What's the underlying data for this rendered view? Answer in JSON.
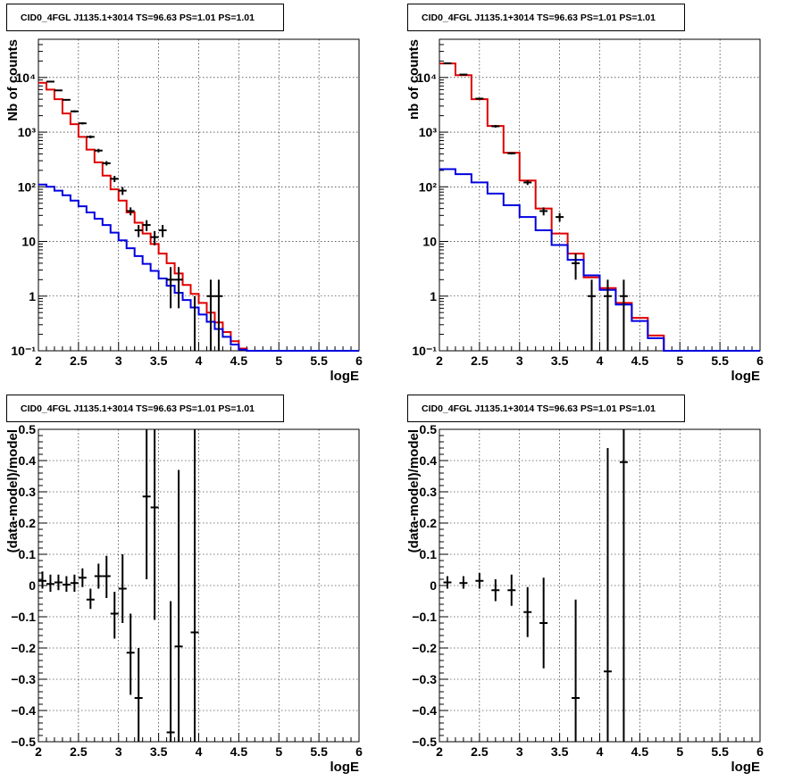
{
  "chart_data": [
    {
      "type": "line",
      "title": "CID0_4FGL J1135.1+3014 TS=96.63 PS=1.01 PS=1.01",
      "xlabel": "logE",
      "ylabel": "Nb of counts",
      "xlim": [
        2,
        6
      ],
      "ylim": [
        0.1,
        50000
      ],
      "yscale": "log",
      "grid": true,
      "x_ticks": [
        2,
        2.5,
        3,
        3.5,
        4,
        4.5,
        5,
        5.5,
        6
      ],
      "x_tick_labels": [
        "2",
        "2.5",
        "3",
        "3.5",
        "4",
        "4.5",
        "5",
        "5.5",
        "6"
      ],
      "y_ticks": [
        0.1,
        1,
        10,
        100,
        1000,
        10000
      ],
      "y_tick_labels": [
        "10⁻¹",
        "1",
        "10",
        "10²",
        "10³",
        "10⁴"
      ],
      "series": [
        {
          "color": "#e00000",
          "style": "step",
          "bin_edges": [
            2.0,
            2.1,
            2.2,
            2.3,
            2.4,
            2.5,
            2.6,
            2.7,
            2.8,
            2.9,
            3.0,
            3.1,
            3.2,
            3.3,
            3.4,
            3.5,
            3.6,
            3.7,
            3.8,
            3.9,
            4.0,
            4.1,
            4.2,
            4.3,
            4.4,
            4.5,
            4.6,
            4.7,
            4.8,
            4.9,
            5.0,
            5.1,
            5.2,
            5.3,
            5.4,
            5.5,
            5.6,
            5.7,
            5.8,
            5.9,
            6.0
          ],
          "values": [
            8000,
            6000,
            4000,
            2200,
            1400,
            820,
            480,
            280,
            160,
            90,
            56,
            34,
            22,
            14,
            9,
            6,
            4,
            2.6,
            1.6,
            1.1,
            0.75,
            0.5,
            0.33,
            0.22,
            0.15,
            0.11,
            0.1,
            0.1,
            0.1,
            0.1,
            0.1,
            0.1,
            0.1,
            0.1,
            0.1,
            0.1,
            0.1,
            0.1,
            0.1,
            0.1
          ]
        },
        {
          "color": "#0000e0",
          "style": "step",
          "bin_edges": [
            2.0,
            2.1,
            2.2,
            2.3,
            2.4,
            2.5,
            2.6,
            2.7,
            2.8,
            2.9,
            3.0,
            3.1,
            3.2,
            3.3,
            3.4,
            3.5,
            3.6,
            3.7,
            3.8,
            3.9,
            4.0,
            4.1,
            4.2,
            4.3,
            4.4,
            4.5,
            4.6,
            4.7,
            4.8,
            4.9,
            5.0,
            5.1,
            5.2,
            5.3,
            5.4,
            5.5,
            5.6,
            5.7,
            5.8,
            5.9,
            6.0
          ],
          "values": [
            110,
            100,
            85,
            70,
            56,
            44,
            34,
            26,
            20,
            14.5,
            10.5,
            7.5,
            5.4,
            3.9,
            2.9,
            2.1,
            1.55,
            1.15,
            0.85,
            0.62,
            0.46,
            0.34,
            0.25,
            0.18,
            0.13,
            0.105,
            0.1,
            0.1,
            0.1,
            0.1,
            0.1,
            0.1,
            0.1,
            0.1,
            0.1,
            0.1,
            0.1,
            0.1,
            0.1,
            0.1
          ]
        },
        {
          "color": "#000000",
          "style": "points",
          "points": [
            {
              "x": 2.15,
              "y": 8400,
              "ylo": 8250,
              "yhi": 8550
            },
            {
              "x": 2.25,
              "y": 5800,
              "ylo": 5650,
              "yhi": 5950
            },
            {
              "x": 2.35,
              "y": 3900,
              "ylo": 3780,
              "yhi": 4020
            },
            {
              "x": 2.45,
              "y": 2400,
              "ylo": 2300,
              "yhi": 2500
            },
            {
              "x": 2.55,
              "y": 1450,
              "ylo": 1380,
              "yhi": 1520
            },
            {
              "x": 2.65,
              "y": 820,
              "ylo": 770,
              "yhi": 870
            },
            {
              "x": 2.75,
              "y": 460,
              "ylo": 425,
              "yhi": 495
            },
            {
              "x": 2.85,
              "y": 270,
              "ylo": 245,
              "yhi": 295
            },
            {
              "x": 2.95,
              "y": 140,
              "ylo": 122,
              "yhi": 158
            },
            {
              "x": 3.05,
              "y": 85,
              "ylo": 71,
              "yhi": 99
            },
            {
              "x": 3.15,
              "y": 36,
              "ylo": 30,
              "yhi": 42
            },
            {
              "x": 3.25,
              "y": 16,
              "ylo": 12,
              "yhi": 20
            },
            {
              "x": 3.35,
              "y": 20,
              "ylo": 15.5,
              "yhi": 24.5
            },
            {
              "x": 3.45,
              "y": 12,
              "ylo": 8.5,
              "yhi": 15.5
            },
            {
              "x": 3.55,
              "y": 16,
              "ylo": 12,
              "yhi": 20
            },
            {
              "x": 3.65,
              "y": 2,
              "ylo": 0.6,
              "yhi": 3.4
            },
            {
              "x": 3.75,
              "y": 2,
              "ylo": 0.6,
              "yhi": 3.4
            },
            {
              "x": 3.95,
              "y": 0,
              "ylo": 0.1,
              "yhi": 1.0
            },
            {
              "x": 4.15,
              "y": 1,
              "ylo": 0.1,
              "yhi": 2.0
            },
            {
              "x": 4.25,
              "y": 1,
              "ylo": 0.1,
              "yhi": 2.0
            }
          ]
        }
      ]
    },
    {
      "type": "line",
      "title": "CID0_4FGL J1135.1+3014 TS=96.63 PS=1.01 PS=1.01",
      "xlabel": "logE",
      "ylabel": "nb of counts",
      "xlim": [
        2,
        6
      ],
      "ylim": [
        0.1,
        50000
      ],
      "yscale": "log",
      "grid": true,
      "x_ticks": [
        2,
        2.5,
        3,
        3.5,
        4,
        4.5,
        5,
        5.5,
        6
      ],
      "x_tick_labels": [
        "2",
        "2.5",
        "3",
        "3.5",
        "4",
        "4.5",
        "5",
        "5.5",
        "6"
      ],
      "y_ticks": [
        0.1,
        1,
        10,
        100,
        1000,
        10000
      ],
      "y_tick_labels": [
        "10⁻¹",
        "1",
        "10",
        "10²",
        "10³",
        "10⁴"
      ],
      "series": [
        {
          "color": "#e00000",
          "style": "step",
          "bin_edges": [
            2.0,
            2.2,
            2.4,
            2.6,
            2.8,
            3.0,
            3.2,
            3.4,
            3.6,
            3.8,
            4.0,
            4.2,
            4.4,
            4.6,
            4.8,
            5.0,
            5.2,
            5.4,
            5.6,
            5.8,
            6.0
          ],
          "values": [
            18000,
            11000,
            4000,
            1300,
            420,
            130,
            40,
            14,
            6,
            2.2,
            1.4,
            0.75,
            0.4,
            0.19,
            0.1,
            0.1,
            0.1,
            0.1,
            0.1,
            0.1
          ]
        },
        {
          "color": "#0000e0",
          "style": "step",
          "bin_edges": [
            2.0,
            2.2,
            2.4,
            2.6,
            2.8,
            3.0,
            3.2,
            3.4,
            3.6,
            3.8,
            4.0,
            4.2,
            4.4,
            4.6,
            4.8,
            5.0,
            5.2,
            5.4,
            5.6,
            5.8,
            6.0
          ],
          "values": [
            210,
            170,
            120,
            75,
            46,
            28,
            16,
            8.6,
            4.6,
            2.4,
            1.3,
            0.7,
            0.35,
            0.17,
            0.1,
            0.1,
            0.1,
            0.1,
            0.1,
            0.1
          ]
        },
        {
          "color": "#000000",
          "style": "points",
          "points": [
            {
              "x": 2.1,
              "y": 18200,
              "ylo": 18000,
              "yhi": 18400
            },
            {
              "x": 2.3,
              "y": 11300,
              "ylo": 11100,
              "yhi": 11500
            },
            {
              "x": 2.5,
              "y": 4100,
              "ylo": 3980,
              "yhi": 4220
            },
            {
              "x": 2.7,
              "y": 1280,
              "ylo": 1210,
              "yhi": 1350
            },
            {
              "x": 2.9,
              "y": 410,
              "ylo": 390,
              "yhi": 430
            },
            {
              "x": 3.1,
              "y": 120,
              "ylo": 108,
              "yhi": 132
            },
            {
              "x": 3.3,
              "y": 36,
              "ylo": 30,
              "yhi": 42
            },
            {
              "x": 3.5,
              "y": 28,
              "ylo": 23,
              "yhi": 33
            },
            {
              "x": 3.7,
              "y": 4,
              "ylo": 2,
              "yhi": 6
            },
            {
              "x": 3.9,
              "y": 1,
              "ylo": 0.1,
              "yhi": 2.0
            },
            {
              "x": 4.1,
              "y": 1,
              "ylo": 0.1,
              "yhi": 2.0
            },
            {
              "x": 4.3,
              "y": 1,
              "ylo": 0.1,
              "yhi": 2.0
            }
          ]
        }
      ]
    },
    {
      "type": "scatter",
      "title": "CID0_4FGL J1135.1+3014 TS=96.63 PS=1.01 PS=1.01",
      "xlabel": "logE",
      "ylabel": "(data-model)/model",
      "xlim": [
        2,
        6
      ],
      "ylim": [
        -0.5,
        0.5
      ],
      "grid": true,
      "x_ticks": [
        2,
        2.5,
        3,
        3.5,
        4,
        4.5,
        5,
        5.5,
        6
      ],
      "x_tick_labels": [
        "2",
        "2.5",
        "3",
        "3.5",
        "4",
        "4.5",
        "5",
        "5.5",
        "6"
      ],
      "y_ticks": [
        -0.5,
        -0.4,
        -0.3,
        -0.2,
        -0.1,
        0,
        0.1,
        0.2,
        0.3,
        0.4,
        0.5
      ],
      "y_tick_labels": [
        "−0.5",
        "−0.4",
        "−0.3",
        "−0.2",
        "−0.1",
        "0",
        "0.1",
        "0.2",
        "0.3",
        "0.4",
        "0.5"
      ],
      "series": [
        {
          "color": "#000000",
          "style": "points",
          "points": [
            {
              "x": 2.05,
              "y": 0.015,
              "ylo": -0.01,
              "yhi": 0.045
            },
            {
              "x": 2.15,
              "y": 0.005,
              "ylo": -0.02,
              "yhi": 0.035
            },
            {
              "x": 2.25,
              "y": 0.01,
              "ylo": -0.015,
              "yhi": 0.035
            },
            {
              "x": 2.35,
              "y": 0.003,
              "ylo": -0.02,
              "yhi": 0.03
            },
            {
              "x": 2.45,
              "y": 0.008,
              "ylo": -0.02,
              "yhi": 0.035
            },
            {
              "x": 2.55,
              "y": 0.025,
              "ylo": -0.005,
              "yhi": 0.055
            },
            {
              "x": 2.65,
              "y": -0.045,
              "ylo": -0.075,
              "yhi": -0.01
            },
            {
              "x": 2.75,
              "y": 0.03,
              "ylo": -0.01,
              "yhi": 0.07
            },
            {
              "x": 2.85,
              "y": 0.03,
              "ylo": -0.04,
              "yhi": 0.095
            },
            {
              "x": 2.95,
              "y": -0.09,
              "ylo": -0.17,
              "yhi": -0.02
            },
            {
              "x": 3.05,
              "y": -0.01,
              "ylo": -0.12,
              "yhi": 0.1
            },
            {
              "x": 3.15,
              "y": -0.215,
              "ylo": -0.35,
              "yhi": -0.09
            },
            {
              "x": 3.25,
              "y": -0.36,
              "ylo": -0.5,
              "yhi": -0.2
            },
            {
              "x": 3.35,
              "y": 0.285,
              "ylo": 0.02,
              "yhi": 0.5
            },
            {
              "x": 3.45,
              "y": 0.25,
              "ylo": -0.11,
              "yhi": 0.5
            },
            {
              "x": 3.65,
              "y": -0.47,
              "ylo": -0.5,
              "yhi": -0.05
            },
            {
              "x": 3.75,
              "y": -0.195,
              "ylo": -0.5,
              "yhi": 0.37
            },
            {
              "x": 3.95,
              "y": -0.15,
              "ylo": -0.5,
              "yhi": 0.5
            }
          ]
        }
      ]
    },
    {
      "type": "scatter",
      "title": "CID0_4FGL J1135.1+3014 TS=96.63 PS=1.01 PS=1.01",
      "xlabel": "logE",
      "ylabel": "(data-model)/model",
      "xlim": [
        2,
        6
      ],
      "ylim": [
        -0.5,
        0.5
      ],
      "grid": true,
      "x_ticks": [
        2,
        2.5,
        3,
        3.5,
        4,
        4.5,
        5,
        5.5,
        6
      ],
      "x_tick_labels": [
        "2",
        "2.5",
        "3",
        "3.5",
        "4",
        "4.5",
        "5",
        "5.5",
        "6"
      ],
      "y_ticks": [
        -0.5,
        -0.4,
        -0.3,
        -0.2,
        -0.1,
        0,
        0.1,
        0.2,
        0.3,
        0.4,
        0.5
      ],
      "y_tick_labels": [
        "−0.5",
        "−0.4",
        "−0.3",
        "−0.2",
        "−0.1",
        "0",
        "0.1",
        "0.2",
        "0.3",
        "0.4",
        "0.5"
      ],
      "series": [
        {
          "color": "#000000",
          "style": "points",
          "points": [
            {
              "x": 2.1,
              "y": 0.01,
              "ylo": -0.01,
              "yhi": 0.03
            },
            {
              "x": 2.3,
              "y": 0.008,
              "ylo": -0.01,
              "yhi": 0.03
            },
            {
              "x": 2.5,
              "y": 0.015,
              "ylo": -0.01,
              "yhi": 0.04
            },
            {
              "x": 2.7,
              "y": -0.015,
              "ylo": -0.05,
              "yhi": 0.02
            },
            {
              "x": 2.9,
              "y": -0.015,
              "ylo": -0.065,
              "yhi": 0.035
            },
            {
              "x": 3.1,
              "y": -0.085,
              "ylo": -0.165,
              "yhi": -0.005
            },
            {
              "x": 3.3,
              "y": -0.12,
              "ylo": -0.265,
              "yhi": 0.025
            },
            {
              "x": 3.7,
              "y": -0.36,
              "ylo": -0.5,
              "yhi": -0.045
            },
            {
              "x": 4.1,
              "y": -0.275,
              "ylo": -0.5,
              "yhi": 0.44
            },
            {
              "x": 4.3,
              "y": 0.395,
              "ylo": -0.5,
              "yhi": 0.5
            }
          ]
        }
      ]
    }
  ]
}
